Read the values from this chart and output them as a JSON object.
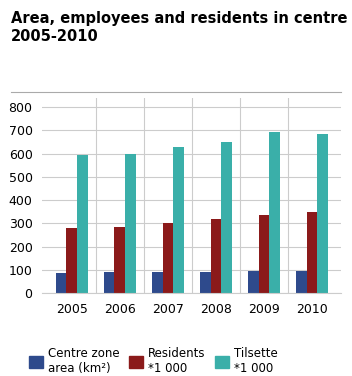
{
  "title_line1": "Area, employees and residents in centre zones.",
  "title_line2": "2005-2010",
  "years": [
    "2005",
    "2006",
    "2007",
    "2008",
    "2009",
    "2010"
  ],
  "series": [
    {
      "name": "Centre zone\narea (km²)",
      "values": [
        85,
        90,
        92,
        93,
        95,
        96
      ],
      "color": "#2e4a8c"
    },
    {
      "name": "Residents\n*1 000",
      "values": [
        282,
        285,
        302,
        320,
        338,
        348
      ],
      "color": "#8b1a1a"
    },
    {
      "name": "Tilsette\n*1 000",
      "values": [
        592,
        600,
        630,
        650,
        693,
        683
      ],
      "color": "#3aafa9"
    }
  ],
  "ylim": [
    0,
    840
  ],
  "yticks": [
    0,
    100,
    200,
    300,
    400,
    500,
    600,
    700,
    800
  ],
  "bar_width": 0.22,
  "background_color": "#ffffff",
  "grid_color": "#cccccc",
  "title_fontsize": 10.5,
  "tick_fontsize": 9,
  "legend_fontsize": 8.5
}
